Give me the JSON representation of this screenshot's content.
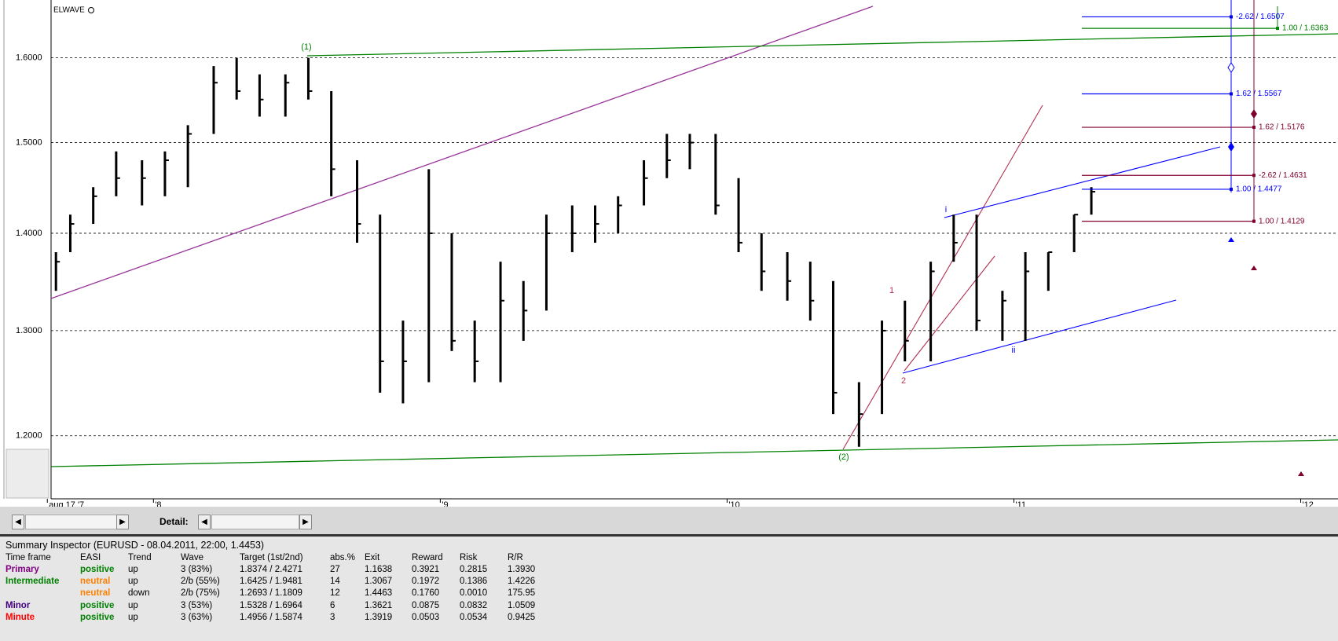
{
  "chart_data": {
    "type": "ohlc",
    "title": "ELWAVE",
    "log_y": true,
    "grid": true,
    "bar_color": "#000000",
    "xlim": [
      2007.643,
      2012.13
    ],
    "xticks": [
      {
        "value": 2007.63,
        "label": "aug 17 '7"
      },
      {
        "value": 2008,
        "label": "'8"
      },
      {
        "value": 2009,
        "label": "'9"
      },
      {
        "value": 2010,
        "label": "'10"
      },
      {
        "value": 2011,
        "label": "'11"
      },
      {
        "value": 2012,
        "label": "'12"
      }
    ],
    "ylim": [
      1.1438,
      1.672
    ],
    "yticks": [
      {
        "value": 1.2,
        "label": "1.2000"
      },
      {
        "value": 1.3,
        "label": "1.3000"
      },
      {
        "value": 1.4,
        "label": "1.4000"
      },
      {
        "value": 1.5,
        "label": "1.5000"
      },
      {
        "value": 1.6,
        "label": "1.6000"
      }
    ],
    "x": [
      2007.66,
      2007.71,
      2007.79,
      2007.87,
      2007.96,
      2008.04,
      2008.12,
      2008.21,
      2008.29,
      2008.37,
      2008.46,
      2008.54,
      2008.62,
      2008.71,
      2008.79,
      2008.87,
      2008.96,
      2009.04,
      2009.12,
      2009.21,
      2009.29,
      2009.37,
      2009.46,
      2009.54,
      2009.62,
      2009.71,
      2009.79,
      2009.87,
      2009.96,
      2010.04,
      2010.12,
      2010.21,
      2010.29,
      2010.37,
      2010.46,
      2010.54,
      2010.62,
      2010.71,
      2010.79,
      2010.87,
      2010.96,
      2011.04,
      2011.12,
      2011.21,
      2011.27
    ],
    "high": [
      1.38,
      1.42,
      1.45,
      1.49,
      1.48,
      1.49,
      1.52,
      1.59,
      1.6,
      1.58,
      1.58,
      1.6,
      1.56,
      1.48,
      1.42,
      1.31,
      1.47,
      1.4,
      1.31,
      1.37,
      1.35,
      1.42,
      1.43,
      1.43,
      1.44,
      1.48,
      1.51,
      1.51,
      1.51,
      1.46,
      1.4,
      1.38,
      1.37,
      1.35,
      1.25,
      1.31,
      1.33,
      1.37,
      1.42,
      1.42,
      1.34,
      1.38,
      1.38,
      1.42,
      1.45
    ],
    "low": [
      1.34,
      1.38,
      1.41,
      1.44,
      1.43,
      1.44,
      1.45,
      1.51,
      1.55,
      1.53,
      1.53,
      1.55,
      1.44,
      1.39,
      1.24,
      1.23,
      1.25,
      1.28,
      1.25,
      1.25,
      1.29,
      1.32,
      1.38,
      1.39,
      1.4,
      1.43,
      1.46,
      1.47,
      1.42,
      1.38,
      1.34,
      1.33,
      1.31,
      1.22,
      1.19,
      1.22,
      1.27,
      1.27,
      1.37,
      1.3,
      1.29,
      1.29,
      1.34,
      1.38,
      1.42
    ],
    "close": [
      1.37,
      1.41,
      1.44,
      1.46,
      1.46,
      1.48,
      1.51,
      1.57,
      1.56,
      1.55,
      1.57,
      1.56,
      1.47,
      1.41,
      1.27,
      1.27,
      1.4,
      1.29,
      1.27,
      1.33,
      1.32,
      1.4,
      1.4,
      1.41,
      1.43,
      1.46,
      1.48,
      1.5,
      1.43,
      1.39,
      1.36,
      1.35,
      1.33,
      1.24,
      1.22,
      1.3,
      1.29,
      1.36,
      1.39,
      1.31,
      1.33,
      1.36,
      1.38,
      1.42,
      1.445
    ],
    "levels": [
      {
        "label": "-2.62 / 1.6507",
        "value": 1.6507,
        "color": "#0000ff"
      },
      {
        "label": "1.00 / 1.6363",
        "value": 1.6363,
        "color": "#008000"
      },
      {
        "label": "1.62 / 1.5567",
        "value": 1.5567,
        "color": "#0000ff"
      },
      {
        "label": "1.62 / 1.5176",
        "value": 1.5176,
        "color": "#800030"
      },
      {
        "label": "-2.62 / 1.4631",
        "value": 1.4631,
        "color": "#800030"
      },
      {
        "label": "1.00 / 1.4477",
        "value": 1.4477,
        "color": "#0000ff"
      },
      {
        "label": "1.00 / 1.4129",
        "value": 1.4129,
        "color": "#800030"
      }
    ],
    "wave_labels": [
      "(1)",
      "(2)",
      "1",
      "2",
      "i",
      "ii"
    ]
  },
  "scrollbar": {
    "detail_label": "Detail:"
  },
  "summary": {
    "title": "Summary Inspector (EURUSD - 08.04.2011, 22:00, 1.4453)",
    "columns": [
      "Time frame",
      "EASI",
      "Trend",
      "Wave",
      "Target (1st/2nd)",
      "abs.%",
      "Exit",
      "Reward",
      "Risk",
      "R/R"
    ],
    "rows": [
      [
        "Primary",
        "positive",
        "up",
        "3 (83%)",
        "1.8374 / 2.4271",
        "27",
        "1.1638",
        "0.3921",
        "0.2815",
        "1.3930"
      ],
      [
        "Intermediate",
        "neutral",
        "up",
        "2/b (55%)",
        "1.6425 / 1.9481",
        "14",
        "1.3067",
        "0.1972",
        "0.1386",
        "1.4226"
      ],
      [
        null,
        "neutral",
        "down",
        "2/b (75%)",
        "1.2693 / 1.1809",
        "12",
        "1.4463",
        "0.1760",
        "0.0010",
        "175.95"
      ],
      [
        "Minor",
        "positive",
        "up",
        "3 (53%)",
        "1.5328 / 1.6964",
        "6",
        "1.3621",
        "0.0875",
        "0.0832",
        "1.0509"
      ],
      [
        "Minute",
        "positive",
        "up",
        "3 (63%)",
        "1.4956 / 1.5874",
        "3",
        "1.3919",
        "0.0503",
        "0.0534",
        "0.9425"
      ]
    ]
  }
}
